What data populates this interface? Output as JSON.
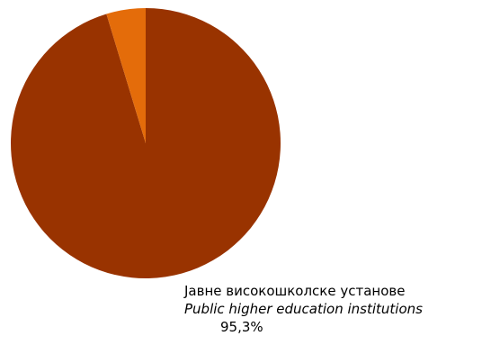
{
  "chart_data": {
    "type": "pie",
    "slices": [
      {
        "label_sr": "Јавне високошколске установе",
        "label_en": "Public higher education institutions",
        "value": 95.3,
        "value_label": "95,3%",
        "color": "#993300"
      },
      {
        "label_sr": "",
        "label_en": "",
        "value": 4.7,
        "value_label": "",
        "color": "#e46c0a"
      }
    ],
    "start": "top",
    "direction": "clockwise",
    "labels_shown": [
      "public"
    ]
  }
}
